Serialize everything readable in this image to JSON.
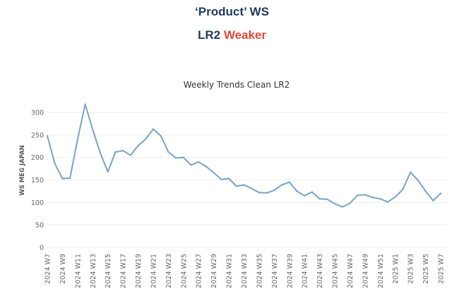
{
  "header": {
    "title": "‘Product’ WS",
    "subtitle_part1": "LR2",
    "subtitle_part2": "Weaker"
  },
  "colors": {
    "title": "#1f3b5a",
    "weaker": "#e0483a",
    "line": "#7aa3c6",
    "grid": "#eeeeee"
  },
  "chart_data": {
    "type": "line",
    "title": "Weekly Trends Clean LR2",
    "xlabel": "",
    "ylabel": "WS MEG JAPAN",
    "ylim": [
      0,
      330
    ],
    "yticks": [
      0,
      50,
      100,
      150,
      200,
      250,
      300
    ],
    "grid": true,
    "x": [
      "2024 W7",
      "2024 W8",
      "2024 W9",
      "2024 W10",
      "2024 W11",
      "2024 W12",
      "2024 W13",
      "2024 W14",
      "2024 W15",
      "2024 W16",
      "2024 W17",
      "2024 W18",
      "2024 W19",
      "2024 W20",
      "2024 W21",
      "2024 W22",
      "2024 W23",
      "2024 W24",
      "2024 W25",
      "2024 W26",
      "2024 W27",
      "2024 W28",
      "2024 W29",
      "2024 W30",
      "2024 W31",
      "2024 W32",
      "2024 W33",
      "2024 W34",
      "2024 W35",
      "2024 W36",
      "2024 W37",
      "2024 W38",
      "2024 W39",
      "2024 W40",
      "2024 W41",
      "2024 W42",
      "2024 W43",
      "2024 W44",
      "2024 W45",
      "2024 W46",
      "2024 W47",
      "2024 W48",
      "2024 W49",
      "2024 W50",
      "2024 W51",
      "2024 W52",
      "2025 W1",
      "2025 W2",
      "2025 W3",
      "2025 W4",
      "2025 W5",
      "2025 W6",
      "2025 W7"
    ],
    "xtick_labels": [
      "2024 W7",
      "2024 W9",
      "2024 W11",
      "2024 W13",
      "2024 W15",
      "2024 W17",
      "2024 W19",
      "2024 W21",
      "2024 W23",
      "2024 W25",
      "2024 W27",
      "2024 W29",
      "2024 W31",
      "2024 W33",
      "2024 W35",
      "2024 W37",
      "2024 W39",
      "2024 W41",
      "2024 W43",
      "2024 W45",
      "2024 W47",
      "2024 W49",
      "2024 W51",
      "2025 W1",
      "2025 W3",
      "2025 W5",
      "2025 W7"
    ],
    "series": [
      {
        "values": [
          248,
          186,
          153,
          154,
          240,
          318,
          262,
          210,
          168,
          212,
          215,
          205,
          226,
          241,
          263,
          248,
          212,
          199,
          200,
          183,
          190,
          180,
          166,
          151,
          153,
          136,
          139,
          131,
          122,
          121,
          127,
          139,
          145,
          125,
          115,
          123,
          108,
          107,
          97,
          90,
          98,
          116,
          117,
          111,
          108,
          101,
          112,
          129,
          167,
          149,
          125,
          104,
          120
        ]
      }
    ]
  }
}
